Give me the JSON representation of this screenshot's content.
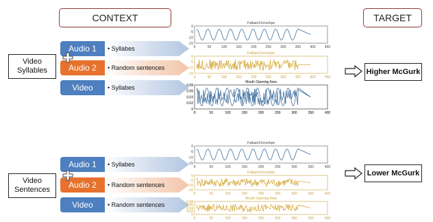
{
  "headers": {
    "context": "CONTEXT",
    "target": "TARGET"
  },
  "colors": {
    "blue": "#4e7fbf",
    "orange": "#e6722d",
    "header_border": "#8b3a2e",
    "gold": "#d6a93a"
  },
  "groups": [
    {
      "condition_lines": [
        "Video",
        "Syllables"
      ],
      "rows": [
        {
          "label": "Audio 1",
          "color": "blue",
          "item": "• Syllabes"
        },
        {
          "label": "Audio 2",
          "color": "orange",
          "item": "• Random sentences"
        },
        {
          "label": "Video",
          "color": "blue",
          "item": "• Syllabes"
        }
      ],
      "plots": [
        {
          "title": "Falband Envelope",
          "y_ticks": [
            "0",
            "-5",
            "-10",
            "-15"
          ],
          "x_ticks": [
            "0",
            "50",
            "100",
            "150",
            "200",
            "250",
            "300",
            "350",
            "400",
            "450"
          ]
        },
        {
          "title": "Falband Envelope",
          "y_ticks": [
            "0",
            "-5",
            "-10",
            "-15"
          ],
          "x_ticks": [
            "0",
            "50",
            "100",
            "150",
            "200",
            "250",
            "300",
            "350",
            "400",
            "450"
          ]
        },
        {
          "title": "Mouth Opening Area",
          "y_ticks": [
            "0.08",
            "0.06",
            "0.04",
            "0.02",
            "0"
          ],
          "x_ticks": [
            "0",
            "50",
            "100",
            "150",
            "200",
            "250",
            "300",
            "350",
            "400"
          ]
        }
      ],
      "result": "Higher McGurk"
    },
    {
      "condition_lines": [
        "Video",
        "Sentences"
      ],
      "rows": [
        {
          "label": "Audio 1",
          "color": "blue",
          "item": "• Syllabes"
        },
        {
          "label": "Audio 2",
          "color": "orange",
          "item": "• Random sentences"
        },
        {
          "label": "Video",
          "color": "blue",
          "item": "• Random sentences"
        }
      ],
      "plots": [
        {
          "title": "Falband Envelope",
          "y_ticks": [
            "0",
            "-5",
            "-10",
            "-15"
          ],
          "x_ticks": [
            "0",
            "50",
            "100",
            "150",
            "200",
            "250",
            "300",
            "350",
            "400"
          ]
        },
        {
          "title": "Falband Envelope",
          "y_ticks": [
            "0",
            "-5",
            "-10",
            "-15"
          ],
          "x_ticks": [
            "0",
            "50",
            "100",
            "150",
            "200",
            "250",
            "300",
            "350",
            "400"
          ]
        },
        {
          "title": "Mouth Opening Area",
          "y_ticks": [
            "0.08",
            "0.06",
            "0.04",
            "0.02",
            "0"
          ],
          "x_ticks": [
            "0",
            "50",
            "100",
            "150",
            "200",
            "250",
            "300",
            "350",
            "400"
          ]
        }
      ],
      "result": "Lower McGurk"
    }
  ]
}
